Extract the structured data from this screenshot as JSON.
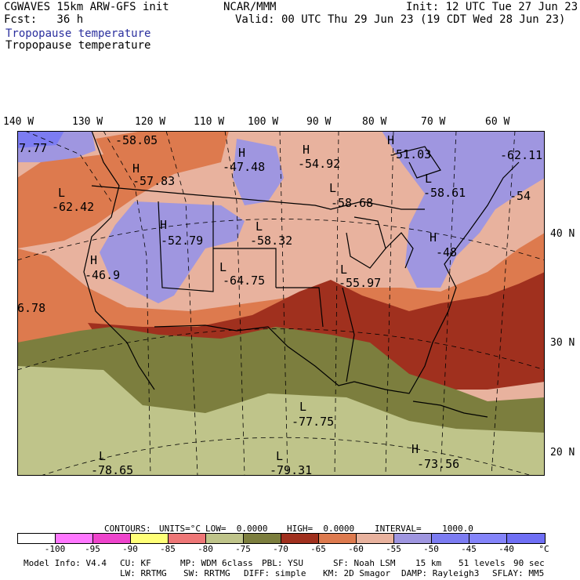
{
  "header": {
    "line1_left": "CGWAVES 15km ARW-GFS init",
    "line1_mid": "NCAR/MMM",
    "line1_right": "Init: 12 UTC Tue 27 Jun 23",
    "line2_left": "Fcst:   36 h",
    "line2_right": "Valid: 00 UTC Thu 29 Jun 23 (19 CDT Wed 28 Jun 23)",
    "field_title_blue": "Tropopause temperature",
    "field_title_black": "Tropopause temperature"
  },
  "longitude_labels": [
    "140 W",
    "130 W",
    "120 W",
    "110 W",
    "100 W",
    "90 W",
    "80 W",
    "70 W",
    "60 W"
  ],
  "latitude_labels": [
    "40 N",
    "30 N",
    "20 N"
  ],
  "map_annotations": [
    {
      "marker": "",
      "value": "7.77"
    },
    {
      "marker": "",
      "value": "-58.05"
    },
    {
      "marker": "H",
      "value": "-57.83"
    },
    {
      "marker": "L",
      "value": "-62.42"
    },
    {
      "marker": "H",
      "value": "-47.48"
    },
    {
      "marker": "H",
      "value": "-54.92"
    },
    {
      "marker": "H",
      "value": "-51.03"
    },
    {
      "marker": "",
      "value": "-62.11"
    },
    {
      "marker": "L",
      "value": "-58.61"
    },
    {
      "marker": "",
      "value": "-54"
    },
    {
      "marker": "L",
      "value": "-58.68"
    },
    {
      "marker": "H",
      "value": "-52.79"
    },
    {
      "marker": "L",
      "value": "-58.32"
    },
    {
      "marker": "H",
      "value": "-46.9"
    },
    {
      "marker": "L",
      "value": "-64.75"
    },
    {
      "marker": "L",
      "value": "-55.97"
    },
    {
      "marker": "H",
      "value": "-48"
    },
    {
      "marker": "",
      "value": "6.78"
    },
    {
      "marker": "L",
      "value": "-77.75"
    },
    {
      "marker": "L",
      "value": "-78.65"
    },
    {
      "marker": "L",
      "value": "-79.31"
    },
    {
      "marker": "H",
      "value": "-73.56"
    }
  ],
  "contour_info": {
    "contours": "CONTOURS:",
    "units": "UNITS=°C",
    "low": "LOW=  0.0000",
    "high": "HIGH=  0.0000",
    "interval": "INTERVAL=    1000.0"
  },
  "colorbar": {
    "colors": [
      "#ffffff",
      "#ff77ff",
      "#ee44cc",
      "#ffff77",
      "#ee7777",
      "#bfc48a",
      "#7c7e3e",
      "#a0301e",
      "#dd7a4e",
      "#e8b29e",
      "#9f96e0",
      "#7c7cf2",
      "#8484fa",
      "#6f6ff5"
    ],
    "ticks": [
      "-100",
      "-95",
      "-90",
      "-85",
      "-80",
      "-75",
      "-70",
      "-65",
      "-60",
      "-55",
      "-50",
      "-45",
      "-40",
      "°C"
    ]
  },
  "footer": {
    "row1": [
      "Model Info: V4.4",
      "CU: KF",
      "MP: WDM 6class",
      "PBL: YSU",
      "SF: Noah LSM",
      "15 km",
      "51 levels",
      "90 sec"
    ],
    "row2": [
      "LW: RRTMG",
      "SW: RRTMG",
      "DIFF: simple",
      "KM: 2D Smagor",
      "DAMP: Rayleigh3",
      "SFLAY: MM5"
    ]
  }
}
